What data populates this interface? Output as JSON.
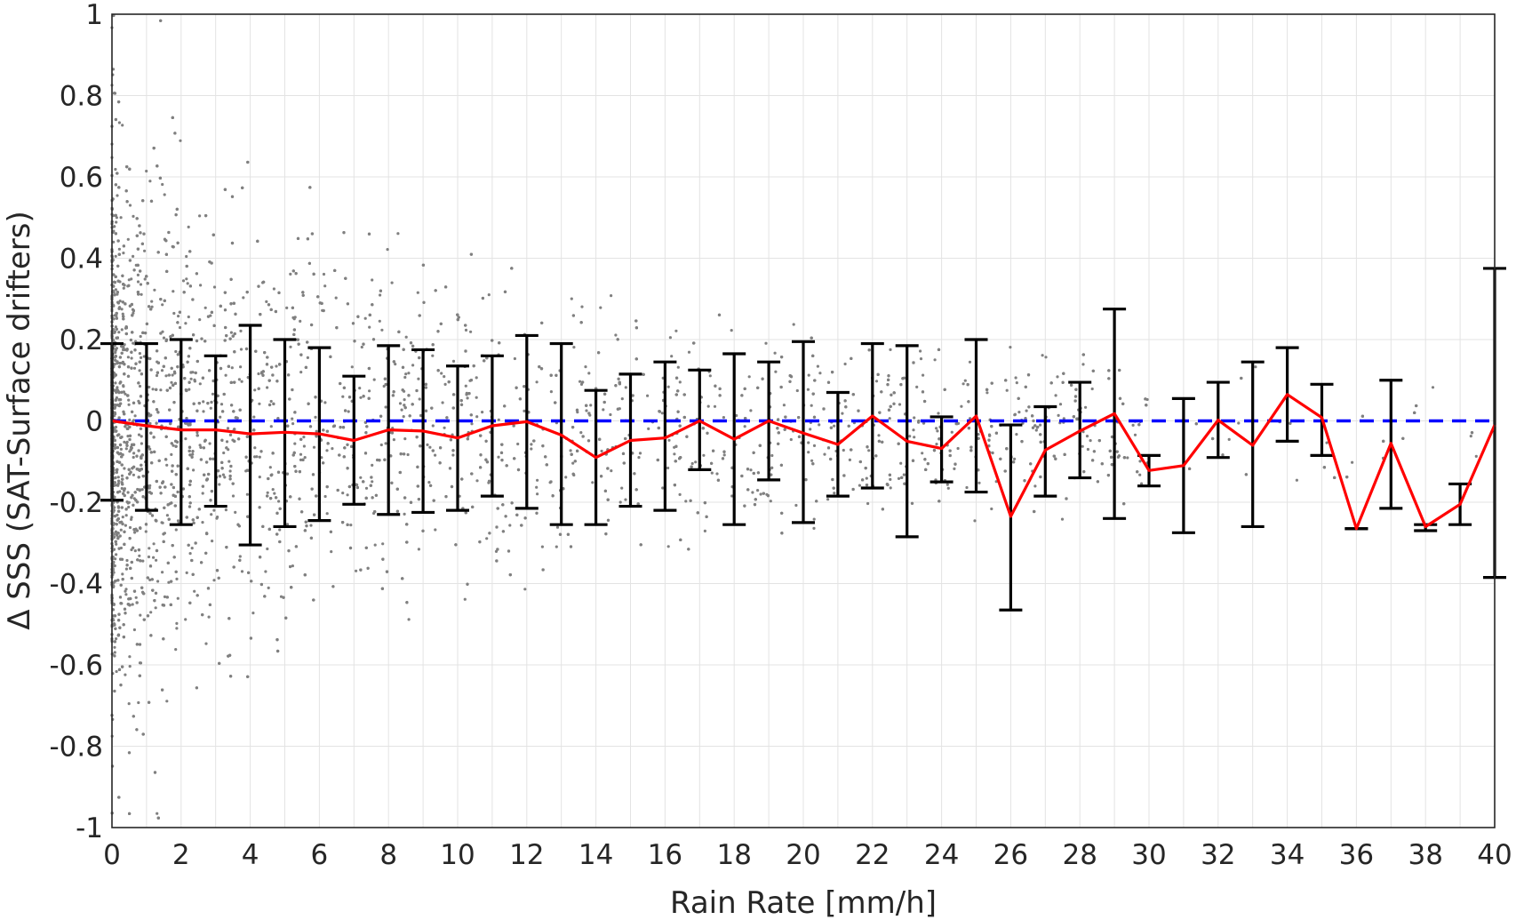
{
  "chart_data": {
    "type": "scatter",
    "title": "",
    "xlabel": "Rain Rate [mm/h]",
    "ylabel": "Δ SSS (SAT-Surface drifters)",
    "xlim": [
      0,
      40
    ],
    "ylim": [
      -1,
      1
    ],
    "grid": true,
    "x_ticks": [
      0,
      2,
      4,
      6,
      8,
      10,
      12,
      14,
      16,
      18,
      20,
      22,
      24,
      26,
      28,
      30,
      32,
      34,
      36,
      38,
      40
    ],
    "y_ticks": [
      -1,
      -0.8,
      -0.6,
      -0.4,
      -0.2,
      0,
      0.2,
      0.4,
      0.6,
      0.8,
      1
    ],
    "x_tick_labels": [
      "0",
      "2",
      "4",
      "6",
      "8",
      "10",
      "12",
      "14",
      "16",
      "18",
      "20",
      "22",
      "24",
      "26",
      "28",
      "30",
      "32",
      "34",
      "36",
      "38",
      "40"
    ],
    "y_tick_labels": [
      "-1",
      "-0.8",
      "-0.6",
      "-0.4",
      "-0.2",
      "0",
      "0.2",
      "0.4",
      "0.6",
      "0.8",
      "1"
    ],
    "reference_line": {
      "y": 0,
      "style": "dashed",
      "color": "#0000ff"
    },
    "scatter_style": {
      "color": "#808080",
      "note_count": 6000
    },
    "mean_series": {
      "color": "#ff0000",
      "x": [
        0,
        1,
        2,
        3,
        4,
        5,
        6,
        7,
        8,
        9,
        10,
        11,
        12,
        13,
        14,
        15,
        16,
        17,
        18,
        19,
        20,
        21,
        22,
        23,
        24,
        25,
        26,
        27,
        28,
        29,
        30,
        31,
        32,
        33,
        34,
        35,
        36,
        37,
        38,
        39,
        40
      ],
      "y": [
        0,
        -0.012,
        -0.022,
        -0.022,
        -0.032,
        -0.028,
        -0.032,
        -0.048,
        -0.022,
        -0.025,
        -0.042,
        -0.012,
        -0.002,
        -0.035,
        -0.09,
        -0.048,
        -0.042,
        0,
        -0.045,
        0,
        -0.03,
        -0.058,
        0.012,
        -0.05,
        -0.068,
        0.012,
        -0.235,
        -0.072,
        -0.025,
        0.018,
        -0.122,
        -0.11,
        0.002,
        -0.06,
        0.065,
        0.008,
        -0.265,
        -0.055,
        -0.26,
        -0.205,
        -0.01
      ]
    },
    "error_bars": {
      "color": "#000000",
      "x": [
        0,
        1,
        2,
        3,
        4,
        5,
        6,
        7,
        8,
        9,
        10,
        11,
        12,
        13,
        14,
        15,
        16,
        17,
        18,
        19,
        20,
        21,
        22,
        23,
        24,
        25,
        26,
        27,
        28,
        29,
        30,
        31,
        32,
        33,
        34,
        35,
        36,
        37,
        38,
        39,
        40
      ],
      "upper": [
        0.19,
        0.19,
        0.2,
        0.16,
        0.235,
        0.2,
        0.18,
        0.11,
        0.185,
        0.175,
        0.135,
        0.16,
        0.21,
        0.19,
        0.075,
        0.115,
        0.145,
        0.125,
        0.165,
        0.145,
        0.195,
        0.07,
        0.19,
        0.185,
        0.01,
        0.2,
        -0.01,
        0.035,
        0.095,
        0.275,
        -0.085,
        0.055,
        0.095,
        0.145,
        0.18,
        0.09,
        -0.265,
        0.1,
        -0.255,
        -0.155,
        0.375
      ],
      "lower": [
        -0.195,
        -0.22,
        -0.255,
        -0.21,
        -0.305,
        -0.26,
        -0.245,
        -0.205,
        -0.23,
        -0.225,
        -0.22,
        -0.185,
        -0.215,
        -0.255,
        -0.255,
        -0.21,
        -0.22,
        -0.12,
        -0.255,
        -0.145,
        -0.25,
        -0.185,
        -0.165,
        -0.285,
        -0.15,
        -0.175,
        -0.465,
        -0.185,
        -0.14,
        -0.24,
        -0.16,
        -0.275,
        -0.09,
        -0.26,
        -0.05,
        -0.085,
        -0.265,
        -0.215,
        -0.27,
        -0.255,
        -0.385
      ]
    }
  }
}
